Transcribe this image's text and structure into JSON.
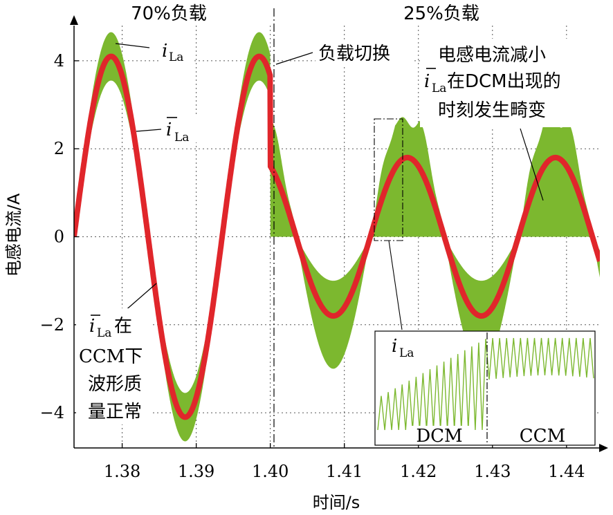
{
  "chart_data": {
    "type": "line",
    "xlabel": "时间/s",
    "ylabel": "电感电流/A",
    "xlim": [
      1.3735,
      1.4445
    ],
    "ylim": [
      -4.8,
      4.8
    ],
    "xticks": [
      1.38,
      1.39,
      1.4,
      1.41,
      1.42,
      1.43,
      1.44
    ],
    "xtick_labels": [
      "1.38",
      "1.39",
      "1.40",
      "1.41",
      "1.42",
      "1.43",
      "1.44"
    ],
    "yticks": [
      4,
      2,
      0,
      -2,
      -4
    ],
    "ytick_labels": [
      "4",
      "2",
      "0",
      "−2",
      "−4"
    ],
    "grid": true,
    "sine_frequency_hz": 50,
    "switch_time": 1.4,
    "series": [
      {
        "name": "iLa",
        "style": "green ripple envelope",
        "color": "#7cb82f",
        "segments": [
          {
            "t_start": 1.3735,
            "t_end": 1.4,
            "peak_upper": 4.65,
            "peak_lower": 3.55
          },
          {
            "t_start": 1.4,
            "t_end": 1.4445,
            "peak_upper": 2.6,
            "peak_lower": 1.0,
            "dcm_clamped_at_zero": true
          }
        ]
      },
      {
        "name": "īLa",
        "style": "red average",
        "color": "#e0262b",
        "segments": [
          {
            "t_start": 1.3735,
            "t_end": 1.4,
            "amplitude": 4.1
          },
          {
            "t_start": 1.4,
            "t_end": 1.4445,
            "amplitude": 1.8
          }
        ]
      }
    ],
    "region_labels": [
      "70%负载",
      "25%负载"
    ],
    "annotations": [
      {
        "label": "iLa",
        "text_main": "i",
        "text_sub": "La"
      },
      {
        "label": "īLa",
        "text_main": "i",
        "text_sub": "La"
      },
      {
        "label": "负载切换"
      },
      {
        "label": "电感电流减小",
        "line2_suffix": "在DCM出现的",
        "line3": "时刻发生畸变"
      },
      {
        "label": "在",
        "lines": [
          "CCM下",
          "波形质",
          "量正常"
        ]
      }
    ],
    "inset": {
      "label_main": "i",
      "label_sub": "La",
      "mode_left": "DCM",
      "mode_right": "CCM"
    }
  }
}
